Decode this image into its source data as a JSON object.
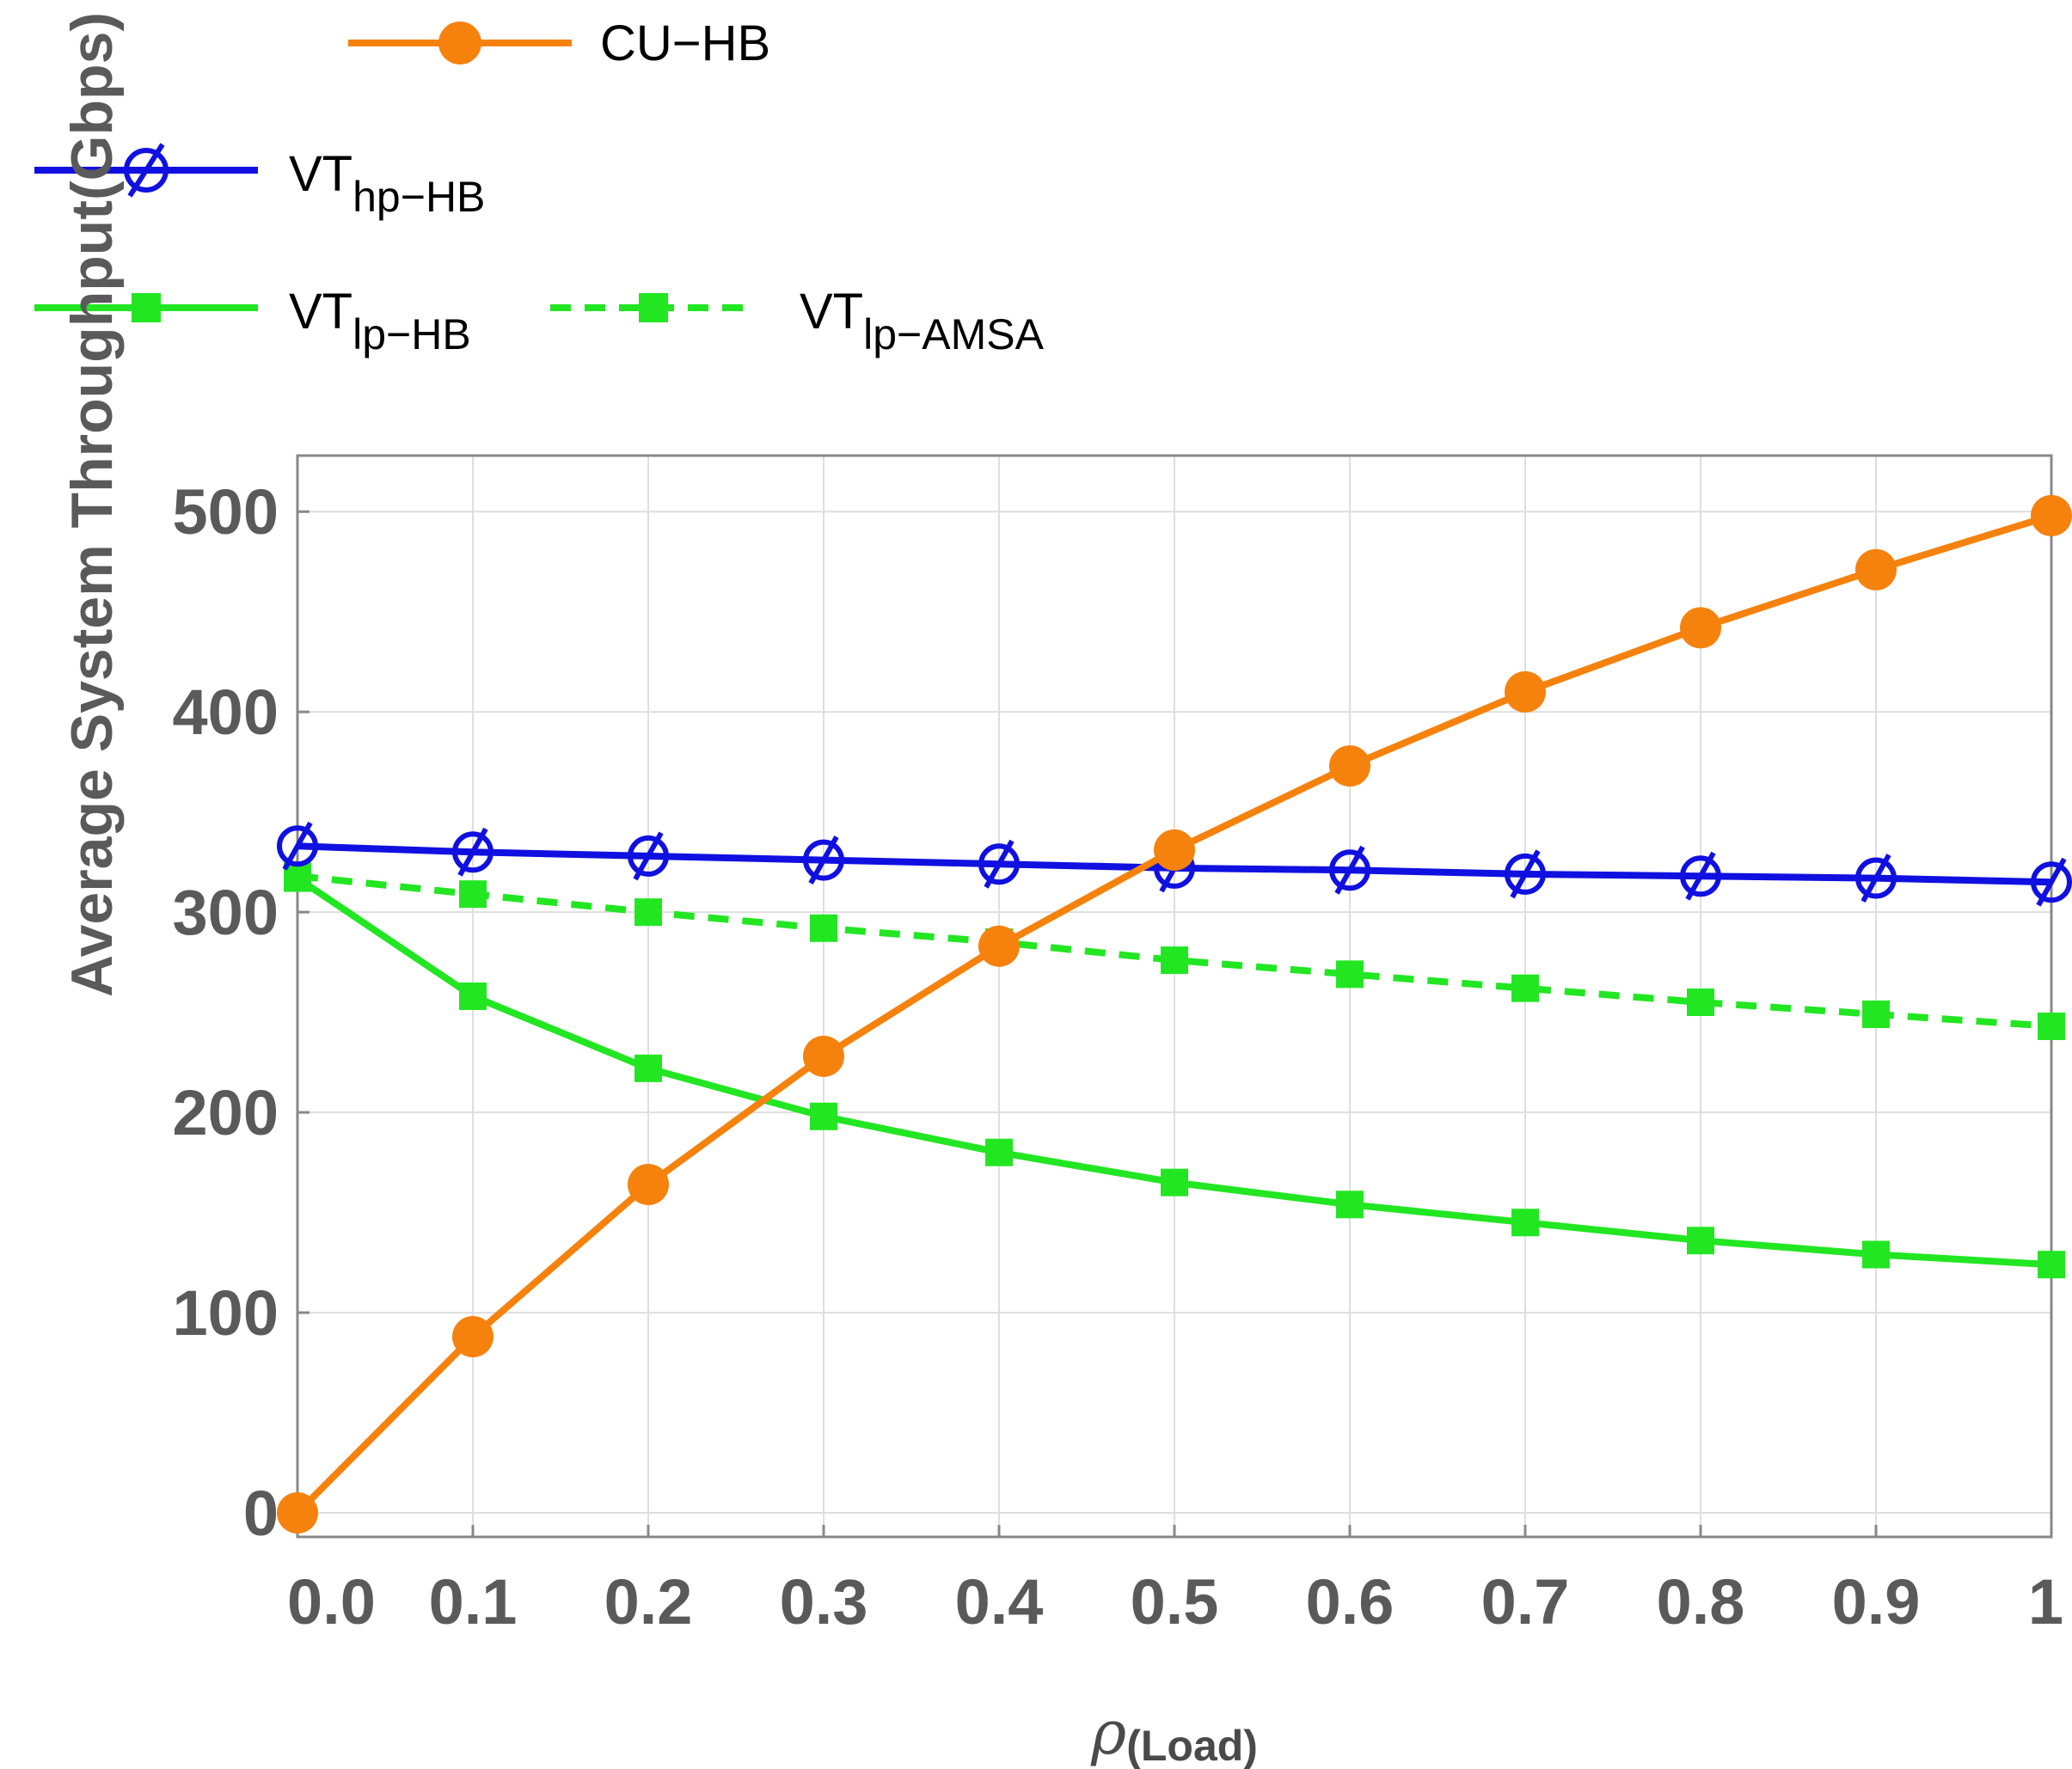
{
  "chart_data": {
    "type": "line",
    "title": "",
    "xlabel": {
      "symbol": "ρ",
      "subscript": "(Load)"
    },
    "ylabel": "Average System Throughput(Gbps)",
    "x": [
      0.0,
      0.1,
      0.2,
      0.3,
      0.4,
      0.5,
      0.6,
      0.7,
      0.8,
      0.9,
      1.0
    ],
    "xlim": [
      0,
      1
    ],
    "ylim": [
      -12,
      528
    ],
    "x_tick_labels": [
      "0.0",
      "0.1",
      "0.2",
      "0.3",
      "0.4",
      "0.5",
      "0.6",
      "0.7",
      "0.8",
      "0.9",
      "1"
    ],
    "y_tick_values": [
      0,
      100,
      200,
      300,
      400,
      500
    ],
    "y_tick_labels": [
      "0",
      "100",
      "200",
      "300",
      "400",
      "500"
    ],
    "grid": true,
    "legend_position": "top-left",
    "series": [
      {
        "id": "cu-hb",
        "name": "CU−HB",
        "label_main": "CU−HB",
        "label_sub": "",
        "color": "#f5820d",
        "marker": "circle",
        "dashed": false,
        "values": [
          0,
          88,
          164,
          228,
          283,
          331,
          373,
          410,
          442,
          471,
          498
        ]
      },
      {
        "id": "vt-hp-hb",
        "name": "VThp−HB",
        "label_main": "VT",
        "label_sub": "hp−HB",
        "color": "#1010e0",
        "marker": "slashed-circle",
        "dashed": false,
        "values": [
          333,
          330,
          328,
          326,
          324,
          322,
          321,
          319,
          318,
          317,
          315
        ]
      },
      {
        "id": "vt-lp-hb",
        "name": "VTlp−HB",
        "label_main": "VT",
        "label_sub": "lp−HB",
        "color": "#22e622",
        "marker": "square",
        "dashed": false,
        "values": [
          317,
          258,
          222,
          198,
          180,
          165,
          154,
          145,
          136,
          129,
          124
        ]
      },
      {
        "id": "vt-lp-amsa",
        "name": "VTlp−AMSA",
        "label_main": "VT",
        "label_sub": "lp−AMSA",
        "color": "#22e622",
        "marker": "square",
        "dashed": true,
        "values": [
          318,
          309,
          300,
          292,
          285,
          276,
          269,
          262,
          255,
          249,
          243
        ]
      }
    ]
  }
}
